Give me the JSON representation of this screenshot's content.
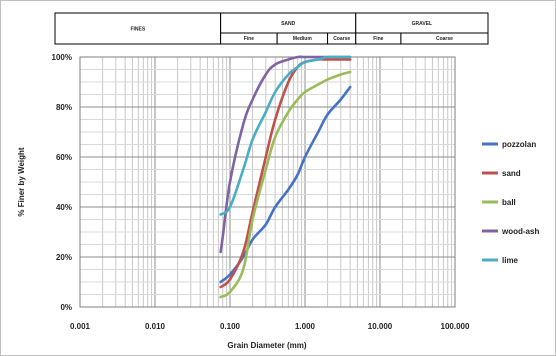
{
  "chart_data": {
    "type": "line",
    "x_scale": "log",
    "xlim": [
      0.001,
      100.0
    ],
    "ylim": [
      0,
      100
    ],
    "xlabel": "Grain Diameter (mm)",
    "ylabel": "% Finer by Weight",
    "x_ticks": [
      {
        "value": 0.001,
        "label": "0.001"
      },
      {
        "value": 0.01,
        "label": "0.010"
      },
      {
        "value": 0.1,
        "label": "0.100"
      },
      {
        "value": 1.0,
        "label": "1.000"
      },
      {
        "value": 10.0,
        "label": "10.000"
      },
      {
        "value": 100.0,
        "label": "100.000"
      }
    ],
    "y_ticks": [
      {
        "value": 0,
        "label": "0%"
      },
      {
        "value": 20,
        "label": "20%"
      },
      {
        "value": 40,
        "label": "40%"
      },
      {
        "value": 60,
        "label": "60%"
      },
      {
        "value": 80,
        "label": "80%"
      },
      {
        "value": 100,
        "label": "100%"
      }
    ],
    "grid": true,
    "legend_position": "right",
    "top_bands": [
      {
        "label": "FINES",
        "from": 0.001,
        "to": 0.075,
        "sub": []
      },
      {
        "label": "SAND",
        "from": 0.075,
        "to": 4.75,
        "sub": [
          {
            "label": "Fine",
            "from": 0.075,
            "to": 0.425
          },
          {
            "label": "Medium",
            "from": 0.425,
            "to": 2.0
          },
          {
            "label": "Coarse",
            "from": 2.0,
            "to": 4.75
          }
        ]
      },
      {
        "label": "GRAVEL",
        "from": 4.75,
        "to": 75,
        "sub": [
          {
            "label": "Fine",
            "from": 4.75,
            "to": 19
          },
          {
            "label": "Coarse",
            "from": 19,
            "to": 75
          }
        ]
      }
    ],
    "series": [
      {
        "name": "pozzolan",
        "color": "#4472C4",
        "x": [
          0.075,
          0.1,
          0.15,
          0.2,
          0.3,
          0.4,
          0.6,
          0.8,
          1.0,
          1.5,
          2.0,
          3.0,
          4.0
        ],
        "y": [
          10,
          13,
          20,
          27,
          33,
          40,
          47,
          53,
          60,
          70,
          77,
          83,
          88
        ]
      },
      {
        "name": "sand",
        "color": "#C0504D",
        "x": [
          0.075,
          0.1,
          0.15,
          0.2,
          0.3,
          0.4,
          0.6,
          0.8,
          1.0,
          1.5,
          2.0,
          3.0,
          4.0
        ],
        "y": [
          8,
          11,
          22,
          38,
          60,
          75,
          90,
          96,
          98,
          99,
          99,
          99,
          99
        ]
      },
      {
        "name": "ball",
        "color": "#9BBB59",
        "x": [
          0.075,
          0.1,
          0.15,
          0.2,
          0.3,
          0.4,
          0.6,
          0.8,
          1.0,
          1.5,
          2.0,
          3.0,
          4.0
        ],
        "y": [
          4,
          6,
          15,
          35,
          55,
          68,
          78,
          83,
          86,
          89,
          91,
          93,
          94
        ]
      },
      {
        "name": "wood-ash",
        "color": "#8064A2",
        "x": [
          0.075,
          0.08,
          0.1,
          0.15,
          0.2,
          0.3,
          0.4,
          0.6,
          0.8,
          1.0,
          1.5,
          2.0,
          4.0
        ],
        "y": [
          22,
          28,
          50,
          73,
          83,
          93,
          97,
          99,
          100,
          100,
          100,
          100,
          100
        ]
      },
      {
        "name": "lime",
        "color": "#4BACC6",
        "x": [
          0.075,
          0.1,
          0.15,
          0.2,
          0.3,
          0.4,
          0.6,
          0.8,
          1.0,
          1.5,
          2.0,
          3.0,
          4.0
        ],
        "y": [
          37,
          40,
          55,
          67,
          78,
          86,
          93,
          96,
          98,
          99,
          100,
          100,
          100
        ]
      }
    ]
  }
}
